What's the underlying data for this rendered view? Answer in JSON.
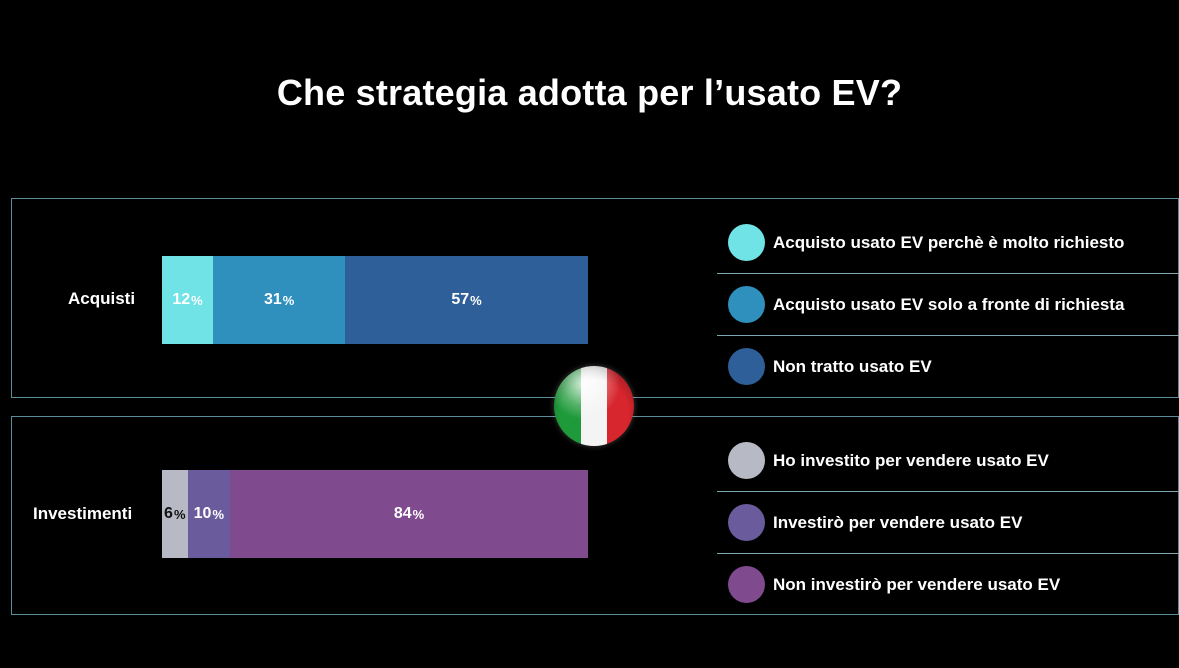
{
  "title": "Che strategia adotta per l’usato EV?",
  "colors": {
    "background": "#000000",
    "panel_border": "#5a8c9a"
  },
  "chart_data": {
    "type": "bar",
    "orientation": "horizontal",
    "stacked": true,
    "unit": "%",
    "title": "Che strategia adotta per l’usato EV?",
    "groups": [
      {
        "label": "Acquisti",
        "series": [
          {
            "name": "Acquisto usato EV perchè è molto richiesto",
            "value": 12,
            "color": "#6fe3e6"
          },
          {
            "name": "Acquisto usato EV solo a fronte di richiesta",
            "value": 31,
            "color": "#2f8fbd"
          },
          {
            "name": "Non tratto usato EV",
            "value": 57,
            "color": "#2e5f98"
          }
        ]
      },
      {
        "label": "Investimenti",
        "series": [
          {
            "name": "Ho investito per vendere usato EV",
            "value": 6,
            "color": "#b7bac5"
          },
          {
            "name": "Investirò per vendere usato EV",
            "value": 10,
            "color": "#6a5c9c"
          },
          {
            "name": "Non investirò per vendere usato EV",
            "value": 84,
            "color": "#7f4a8e"
          }
        ]
      }
    ],
    "legend": "right"
  },
  "decor": {
    "flag_icon": "italy-flag-icon"
  }
}
